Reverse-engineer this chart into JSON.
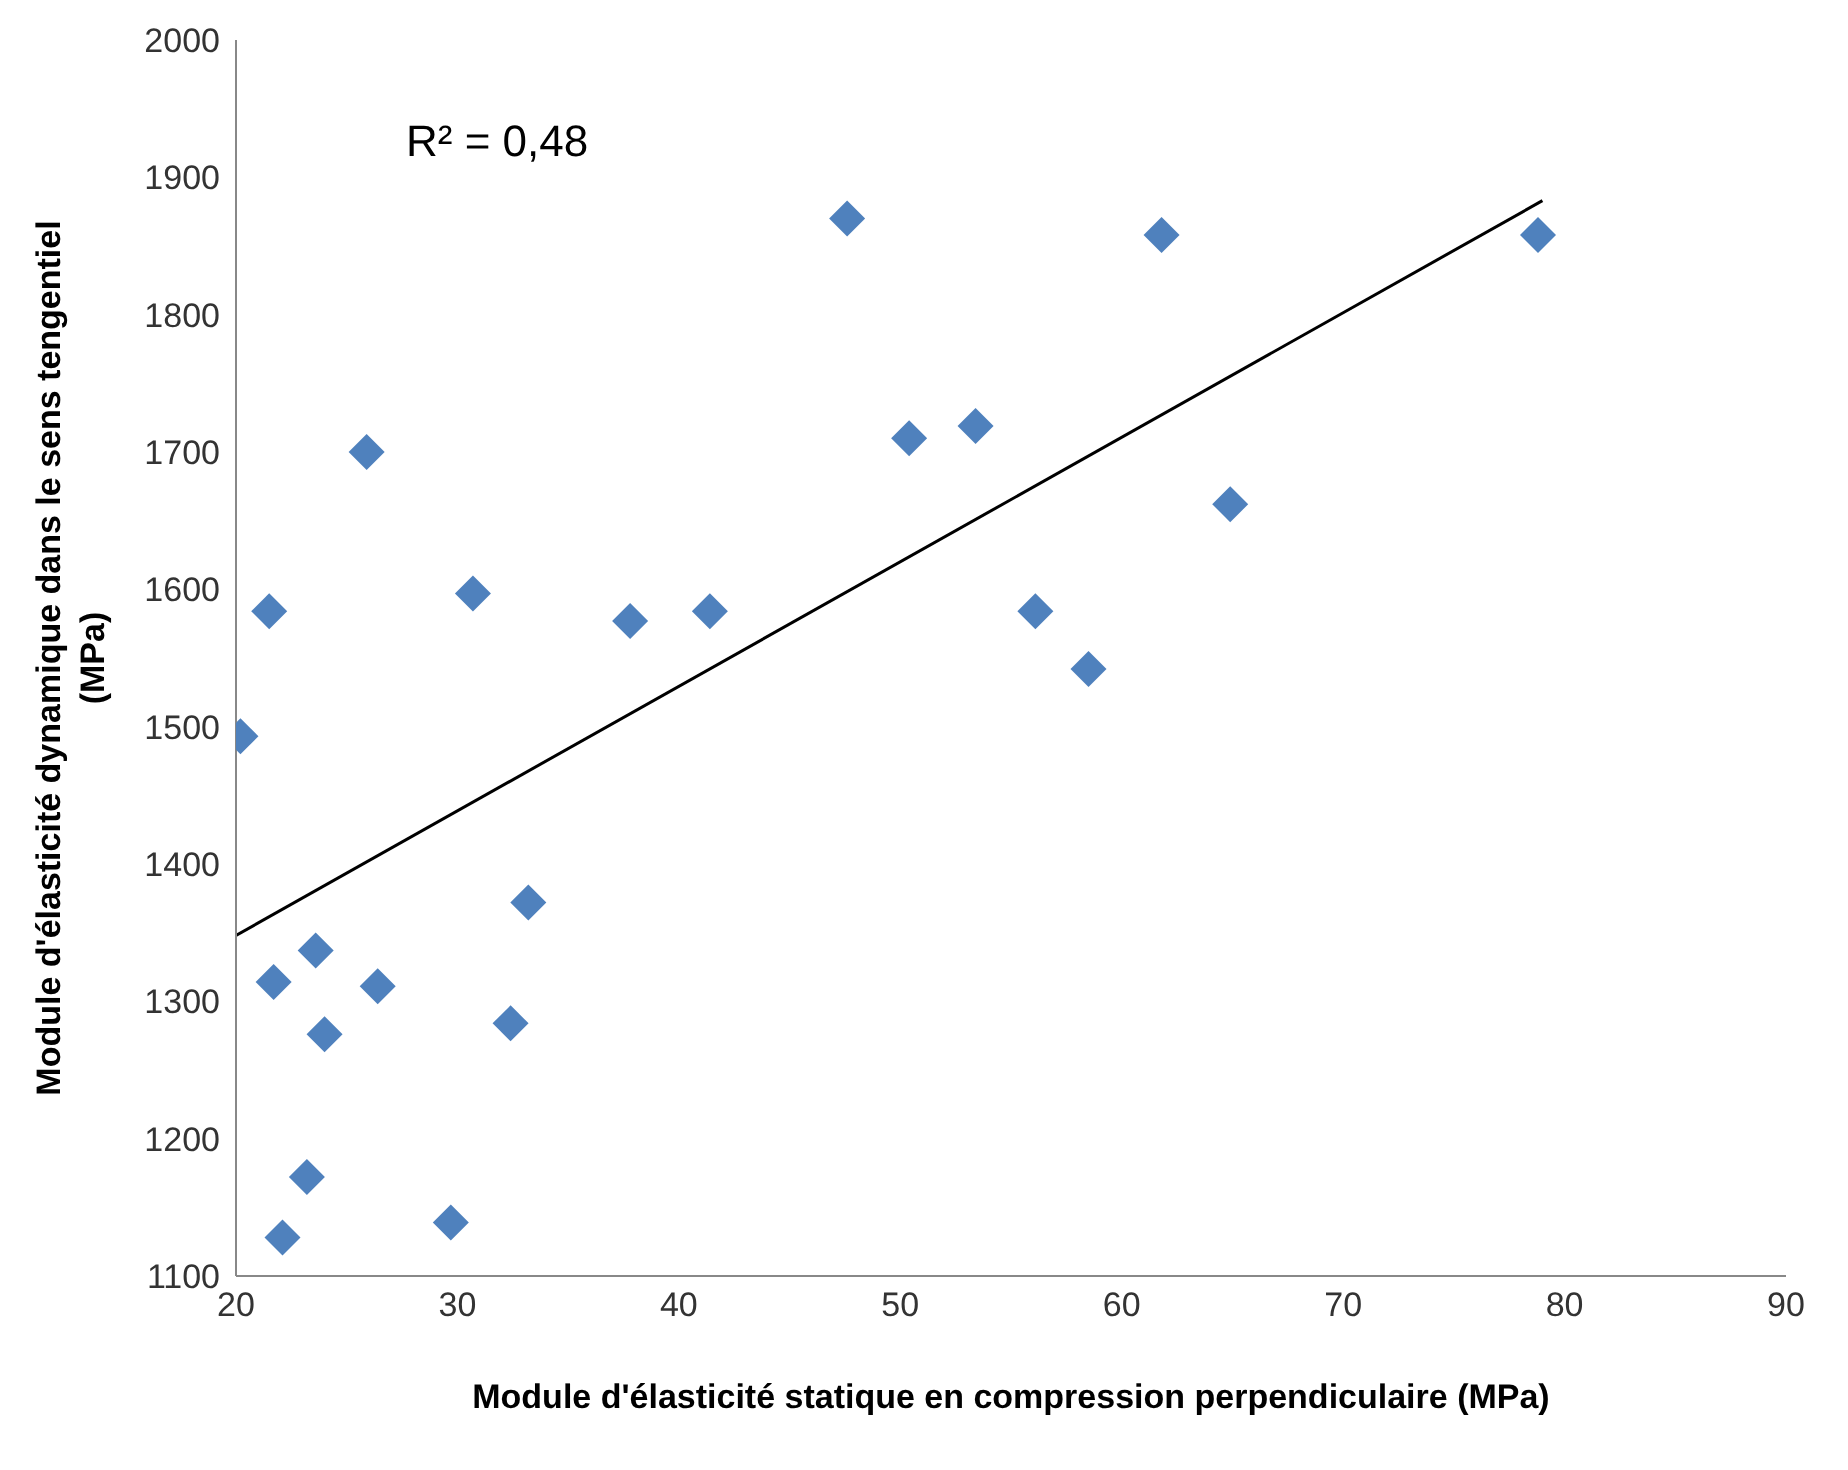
{
  "chart_data": {
    "type": "scatter",
    "xlabel": "Module d'élasticité statique en compression perpendiculaire (MPa)",
    "ylabel": "Module d'élasticité dynamique dans le sens tengentiel (MPa)",
    "annotations": [
      "R² = 0,48"
    ],
    "xlim": [
      20,
      90
    ],
    "xticks": [
      20,
      30,
      40,
      50,
      60,
      70,
      80,
      90
    ],
    "ylim": [
      1100,
      2000
    ],
    "yticks": [
      1100,
      1200,
      1300,
      1400,
      1500,
      1600,
      1700,
      1800,
      1900,
      2000
    ],
    "marker": "diamond",
    "series": [
      {
        "color": "#4f81bd",
        "x": [
          20.2,
          21.5,
          21.7,
          22.1,
          23.2,
          23.6,
          24.0,
          25.9,
          26.4,
          29.7,
          30.7,
          32.4,
          33.2,
          37.8,
          41.4,
          47.6,
          50.4,
          53.4,
          56.1,
          58.5,
          61.8,
          64.9,
          78.8
        ],
        "values": [
          1493,
          1584,
          1314,
          1128,
          1172,
          1337,
          1276,
          1700,
          1311,
          1139,
          1597,
          1284,
          1372,
          1577,
          1584,
          1870,
          1710,
          1719,
          1584,
          1542,
          1858,
          1662,
          1858
        ]
      },
      {
        "type": "line",
        "color": "#000000",
        "marker": "none",
        "x": [
          20,
          79
        ],
        "values": [
          1348,
          1883
        ]
      }
    ]
  }
}
